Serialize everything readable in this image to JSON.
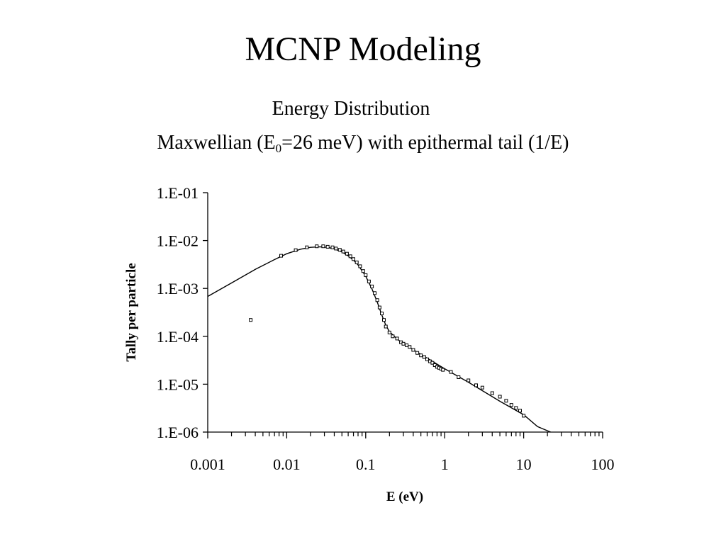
{
  "slide": {
    "title": "MCNP Modeling",
    "subtitle_line1": "Energy Distribution",
    "subtitle_line2_pre": "Maxwellian (E",
    "subtitle_line2_sub": "0",
    "subtitle_line2_post": "=26 meV) with epithermal tail (1/E)"
  },
  "chart_data": {
    "type": "scatter",
    "xlabel": "E (eV)",
    "ylabel": "Tally per particle",
    "x_scale": "log",
    "y_scale": "log",
    "xlim": [
      0.001,
      100
    ],
    "ylim": [
      1e-06,
      0.1
    ],
    "x_tick_labels": [
      "0.001",
      "0.01",
      "0.1",
      "1",
      "10",
      "100"
    ],
    "y_tick_labels": [
      "1.E-06",
      "1.E-05",
      "1.E-04",
      "1.E-03",
      "1.E-02",
      "1.E-01"
    ],
    "grid": false,
    "legend": "none",
    "series": [
      {
        "kind": "markers",
        "points": [
          [
            0.0035,
            0.00022
          ],
          [
            0.0085,
            0.0048
          ],
          [
            0.013,
            0.0063
          ],
          [
            0.018,
            0.0072
          ],
          [
            0.024,
            0.0076
          ],
          [
            0.029,
            0.0076
          ],
          [
            0.033,
            0.0074
          ],
          [
            0.038,
            0.0072
          ],
          [
            0.042,
            0.0068
          ],
          [
            0.047,
            0.0064
          ],
          [
            0.052,
            0.0059
          ],
          [
            0.058,
            0.0053
          ],
          [
            0.064,
            0.0047
          ],
          [
            0.07,
            0.0041
          ],
          [
            0.077,
            0.0035
          ],
          [
            0.085,
            0.0029
          ],
          [
            0.093,
            0.0023
          ],
          [
            0.1,
            0.0019
          ],
          [
            0.11,
            0.0014
          ],
          [
            0.12,
            0.0011
          ],
          [
            0.13,
            0.0008
          ],
          [
            0.14,
            0.00057
          ],
          [
            0.15,
            0.0004
          ],
          [
            0.16,
            0.0003
          ],
          [
            0.17,
            0.00022
          ],
          [
            0.18,
            0.00016
          ],
          [
            0.2,
            0.00012
          ],
          [
            0.22,
            0.0001
          ],
          [
            0.25,
            9e-05
          ],
          [
            0.28,
            7.5e-05
          ],
          [
            0.3,
            7e-05
          ],
          [
            0.33,
            6.5e-05
          ],
          [
            0.36,
            6e-05
          ],
          [
            0.4,
            5.2e-05
          ],
          [
            0.45,
            4.5e-05
          ],
          [
            0.5,
            4e-05
          ],
          [
            0.55,
            3.7e-05
          ],
          [
            0.6,
            3.3e-05
          ],
          [
            0.65,
            3e-05
          ],
          [
            0.7,
            2.8e-05
          ],
          [
            0.75,
            2.5e-05
          ],
          [
            0.8,
            2.3e-05
          ],
          [
            0.85,
            2.2e-05
          ],
          [
            0.9,
            2.1e-05
          ],
          [
            0.95,
            2e-05
          ],
          [
            1.2,
            1.8e-05
          ],
          [
            1.5,
            1.4e-05
          ],
          [
            2.0,
            1.2e-05
          ],
          [
            2.5,
            9.5e-06
          ],
          [
            3.0,
            8.5e-06
          ],
          [
            4.0,
            6.5e-06
          ],
          [
            5.0,
            5.5e-06
          ],
          [
            6.0,
            4.5e-06
          ],
          [
            7.0,
            3.7e-06
          ],
          [
            8.0,
            3.2e-06
          ],
          [
            9.0,
            2.8e-06
          ],
          [
            10.0,
            2.2e-06
          ]
        ]
      },
      {
        "kind": "line",
        "points": [
          [
            0.001,
            0.00068
          ],
          [
            0.002,
            0.0013
          ],
          [
            0.004,
            0.0025
          ],
          [
            0.007,
            0.004
          ],
          [
            0.01,
            0.0053
          ],
          [
            0.015,
            0.0066
          ],
          [
            0.02,
            0.0072
          ],
          [
            0.026,
            0.0074
          ],
          [
            0.033,
            0.0072
          ],
          [
            0.04,
            0.0067
          ],
          [
            0.05,
            0.0058
          ],
          [
            0.06,
            0.0048
          ],
          [
            0.07,
            0.0039
          ],
          [
            0.08,
            0.0031
          ],
          [
            0.1,
            0.0018
          ],
          [
            0.12,
            0.00098
          ],
          [
            0.14,
            0.00052
          ],
          [
            0.16,
            0.00028
          ],
          [
            0.18,
            0.00017
          ],
          [
            0.2,
            0.000125
          ],
          [
            0.25,
            8.8e-05
          ],
          [
            0.3,
            7e-05
          ],
          [
            0.5,
            4.2e-05
          ],
          [
            1.0,
            2.1e-05
          ],
          [
            2.0,
            1.1e-05
          ],
          [
            5.0,
            4.4e-06
          ],
          [
            10.0,
            2.3e-06
          ],
          [
            15.0,
            1.3e-06
          ],
          [
            22.0,
            1e-06
          ]
        ]
      }
    ]
  }
}
